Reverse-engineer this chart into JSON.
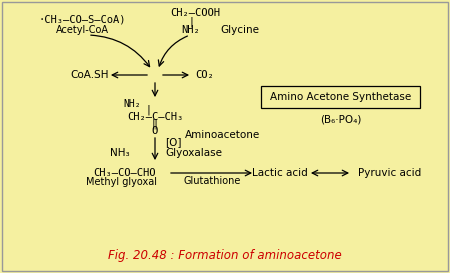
{
  "background_color": "#f5f0a0",
  "border_color": "#999999",
  "title": "Fig. 20.48 : Formation of aminoacetone",
  "title_color": "#cc0000",
  "title_fontsize": 8.5,
  "enzyme_box_text": "Amino Acetone Synthetase",
  "enzyme_box_sub": "(B₆·PO₄)",
  "acetyl_coa": "·CH₃–CO–S–CoA)",
  "acetyl_coa_label": "Acetyl-CoA",
  "glycine_top": "CH₂–COOH",
  "glycine_nh2": "NH₂",
  "glycine_label": "Glycine",
  "coa_sh": "CoA.SH",
  "co2": "CO₂",
  "struct_nh2": "NH₂",
  "struct_pipe": "|",
  "struct_ch2": "CH₂–C–CH₃",
  "struct_dbl": "‖",
  "struct_o": "O",
  "aminoacetone": "Aminoacetone",
  "oxidation": "[O]",
  "nh3": "NH₃",
  "glyoxalase": "Glyoxalase",
  "methyl_glyoxal_formula": "CH₃–CO–CHO",
  "methyl_glyoxal_label": "Methyl glyoxal",
  "glutathione": "Glutathione",
  "lactic_acid": "Lactic acid",
  "pyruvic_acid": "Pyruvic acid",
  "figsize": [
    4.5,
    2.73
  ],
  "dpi": 100
}
